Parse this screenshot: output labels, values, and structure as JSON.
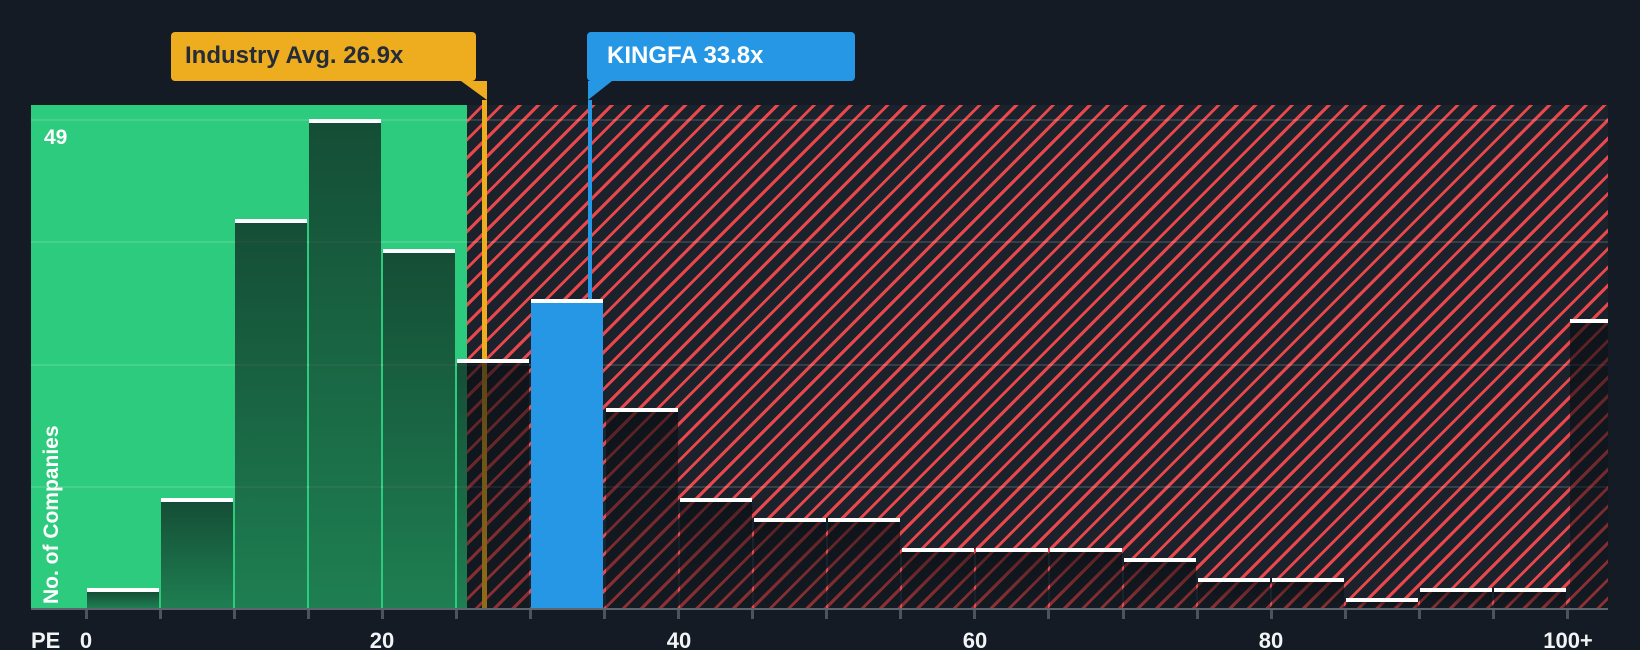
{
  "chart_data": {
    "type": "bar",
    "title": "PE ratio distribution histogram",
    "xlabel": "PE",
    "ylabel": "No. of Companies",
    "y_max_label": "49",
    "ylim": [
      0,
      49
    ],
    "grid": "horizontal-quarters",
    "legend_position": "none",
    "bin_width": 5,
    "x_ticks": [
      {
        "value": 0,
        "label": "0"
      },
      {
        "value": 20,
        "label": "20"
      },
      {
        "value": 40,
        "label": "40"
      },
      {
        "value": 60,
        "label": "60"
      },
      {
        "value": 80,
        "label": "80"
      },
      {
        "value": 100,
        "label": "100+"
      }
    ],
    "bins": [
      {
        "range": "0-5",
        "start": 0,
        "value": 2,
        "zone": "below"
      },
      {
        "range": "5-10",
        "start": 5,
        "value": 11,
        "zone": "below"
      },
      {
        "range": "10-15",
        "start": 10,
        "value": 39,
        "zone": "below"
      },
      {
        "range": "15-20",
        "start": 15,
        "value": 49,
        "zone": "below"
      },
      {
        "range": "20-25",
        "start": 20,
        "value": 36,
        "zone": "below"
      },
      {
        "range": "25-30",
        "start": 25,
        "value": 25,
        "zone": "above"
      },
      {
        "range": "30-35",
        "start": 30,
        "value": 31,
        "zone": "kingfa"
      },
      {
        "range": "35-40",
        "start": 35,
        "value": 20,
        "zone": "above"
      },
      {
        "range": "40-45",
        "start": 40,
        "value": 11,
        "zone": "above"
      },
      {
        "range": "45-50",
        "start": 45,
        "value": 9,
        "zone": "above"
      },
      {
        "range": "50-55",
        "start": 50,
        "value": 9,
        "zone": "above"
      },
      {
        "range": "55-60",
        "start": 55,
        "value": 6,
        "zone": "above"
      },
      {
        "range": "60-65",
        "start": 60,
        "value": 6,
        "zone": "above"
      },
      {
        "range": "65-70",
        "start": 65,
        "value": 6,
        "zone": "above"
      },
      {
        "range": "70-75",
        "start": 70,
        "value": 5,
        "zone": "above"
      },
      {
        "range": "75-80",
        "start": 75,
        "value": 3,
        "zone": "above"
      },
      {
        "range": "80-85",
        "start": 80,
        "value": 3,
        "zone": "above"
      },
      {
        "range": "85-90",
        "start": 85,
        "value": 1,
        "zone": "above"
      },
      {
        "range": "90-95",
        "start": 90,
        "value": 2,
        "zone": "above"
      },
      {
        "range": "95-100",
        "start": 95,
        "value": 2,
        "zone": "above"
      },
      {
        "range": "100+",
        "start": 100,
        "value": 29,
        "zone": "above",
        "special": "plus"
      }
    ],
    "annotations": [
      {
        "id": "industry",
        "label": "Industry Avg. 26.9x",
        "value": 26.9
      },
      {
        "id": "company",
        "label": "KINGFA 33.8x",
        "value": 33.8
      }
    ]
  },
  "colors": {
    "background": "#141B24",
    "zone_below_bg": "#2DCB7D",
    "zone_above_bg": "#1B222C",
    "zone_above_stripe": "#E8474B",
    "kingfa_blue": "#2697E4",
    "industry_yellow": "#EEAD1E",
    "callout_text_dark": "#232C38",
    "bar_cap": "#FFFFFF",
    "axis_line": "#60656D",
    "tick": "#4E535B",
    "label_text": "#F2F4F6"
  }
}
